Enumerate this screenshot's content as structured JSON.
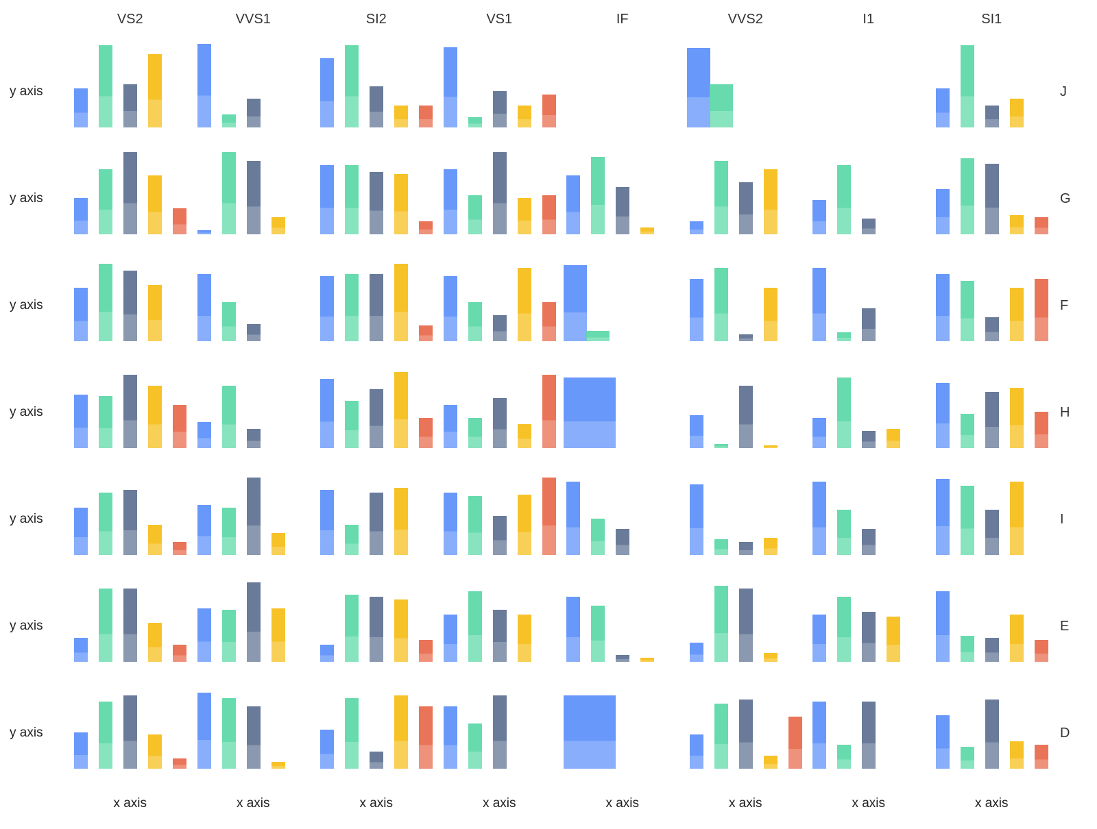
{
  "chart_data": {
    "type": "bar",
    "title": "",
    "xlabel": "x axis",
    "ylabel": "y axis",
    "facet_columns": [
      "VS2",
      "VVS1",
      "SI2",
      "VS1",
      "IF",
      "VVS2",
      "I1",
      "SI1"
    ],
    "facet_rows": [
      "J",
      "G",
      "F",
      "H",
      "I",
      "E",
      "D"
    ],
    "series_colors": [
      "#5B8FF9",
      "#5AD8A6",
      "#5D7092",
      "#F6BD16",
      "#E8684A"
    ],
    "ylim": [
      0,
      100
    ],
    "grid": "off",
    "legend": "none",
    "cells": {
      "J": [
        [
          45,
          95,
          50,
          85,
          0
        ],
        [
          97,
          15,
          33,
          0,
          0
        ],
        [
          80,
          95,
          48,
          25,
          25
        ],
        [
          93,
          12,
          42,
          25,
          38
        ],
        [
          0,
          0,
          0,
          0,
          0
        ],
        [
          92,
          50,
          0,
          0,
          0
        ],
        [
          0,
          0,
          0,
          0,
          0
        ],
        [
          45,
          95,
          25,
          33,
          0
        ]
      ],
      "G": [
        [
          42,
          75,
          95,
          68,
          30
        ],
        [
          5,
          95,
          85,
          20,
          0
        ],
        [
          80,
          80,
          72,
          70,
          15
        ],
        [
          75,
          45,
          95,
          42,
          45
        ],
        [
          68,
          90,
          55,
          8,
          0
        ],
        [
          15,
          85,
          60,
          75,
          0
        ],
        [
          40,
          80,
          18,
          0,
          0
        ],
        [
          52,
          88,
          82,
          22,
          20
        ]
      ],
      "F": [
        [
          62,
          90,
          82,
          65,
          0
        ],
        [
          78,
          45,
          20,
          0,
          0
        ],
        [
          75,
          78,
          78,
          90,
          18
        ],
        [
          75,
          45,
          30,
          85,
          45
        ],
        [
          88,
          12,
          0,
          0,
          0
        ],
        [
          72,
          85,
          8,
          62,
          0
        ],
        [
          85,
          10,
          38,
          0,
          0
        ],
        [
          78,
          70,
          28,
          62,
          72
        ]
      ],
      "H": [
        [
          62,
          60,
          85,
          72,
          50
        ],
        [
          30,
          72,
          22,
          0,
          0
        ],
        [
          80,
          55,
          68,
          88,
          35
        ],
        [
          50,
          35,
          58,
          28,
          85
        ],
        [
          82,
          0,
          0,
          0,
          0
        ],
        [
          38,
          5,
          72,
          3,
          0
        ],
        [
          35,
          82,
          20,
          22,
          0
        ],
        [
          75,
          40,
          65,
          70,
          42
        ]
      ],
      "I": [
        [
          55,
          72,
          75,
          35,
          15
        ],
        [
          58,
          55,
          90,
          25,
          0
        ],
        [
          75,
          35,
          72,
          78,
          0
        ],
        [
          72,
          68,
          45,
          70,
          90
        ],
        [
          85,
          42,
          30,
          0,
          0
        ],
        [
          82,
          18,
          15,
          20,
          0
        ],
        [
          85,
          52,
          30,
          0,
          0
        ],
        [
          88,
          80,
          52,
          85,
          0
        ]
      ],
      "E": [
        [
          28,
          85,
          85,
          45,
          20
        ],
        [
          62,
          60,
          92,
          62,
          0
        ],
        [
          20,
          78,
          75,
          72,
          25
        ],
        [
          55,
          82,
          60,
          55,
          0
        ],
        [
          75,
          65,
          8,
          5,
          0
        ],
        [
          22,
          88,
          85,
          10,
          0
        ],
        [
          55,
          75,
          58,
          52,
          0
        ],
        [
          82,
          30,
          28,
          55,
          25
        ]
      ],
      "D": [
        [
          42,
          78,
          85,
          40,
          12
        ],
        [
          88,
          82,
          72,
          8,
          0
        ],
        [
          45,
          82,
          20,
          85,
          72
        ],
        [
          72,
          52,
          85,
          0,
          0
        ],
        [
          85,
          0,
          0,
          0,
          0
        ],
        [
          40,
          75,
          80,
          15,
          60
        ],
        [
          78,
          28,
          78,
          0,
          0
        ],
        [
          62,
          25,
          80,
          32,
          28
        ]
      ]
    },
    "wide_bars": {
      "J|VVS2": 34,
      "F|IF": 34,
      "H|IF": 76,
      "D|IF": 76
    }
  }
}
